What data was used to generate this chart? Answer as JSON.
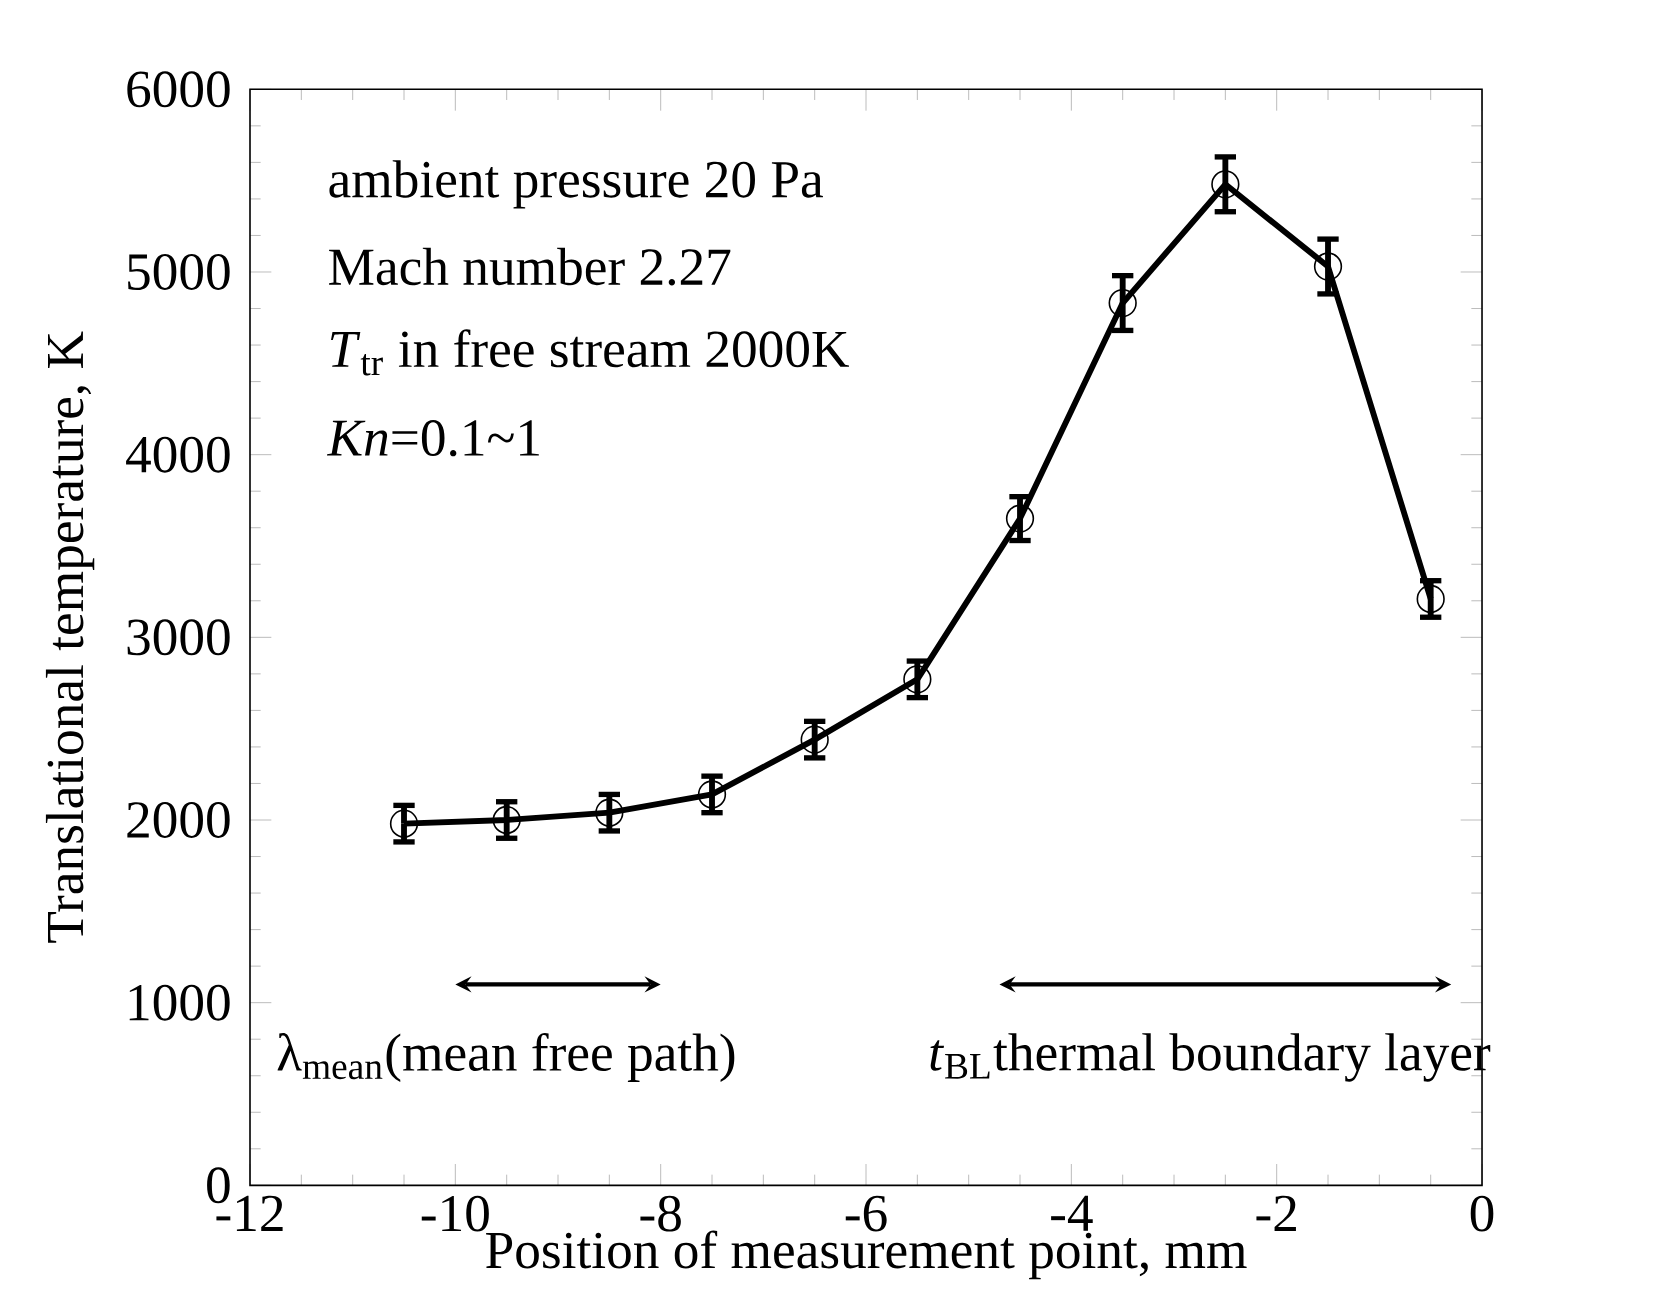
{
  "chart_data": {
    "type": "line",
    "xlabel": "Position of measurement point, mm",
    "ylabel": "Translational temperature, K",
    "x": [
      -10.5,
      -9.5,
      -8.5,
      -7.5,
      -6.5,
      -5.5,
      -4.5,
      -3.5,
      -2.5,
      -1.5,
      -0.5
    ],
    "series": [
      {
        "color": "#000000",
        "values": [
          1980,
          2000,
          2040,
          2140,
          2440,
          2770,
          3650,
          4830,
          5480,
          5030,
          3210
        ],
        "errors": [
          100,
          100,
          100,
          100,
          100,
          100,
          120,
          150,
          150,
          150,
          100
        ]
      }
    ],
    "xlim": [
      -12,
      0
    ],
    "xticks": [
      -12,
      -10,
      -8,
      -6,
      -4,
      -2,
      0
    ],
    "ylim": [
      0,
      6000
    ],
    "yticks": [
      0,
      1000,
      2000,
      3000,
      4000,
      5000,
      6000
    ],
    "marker": "circle",
    "line_style": "solid",
    "annotations": [
      "ambient pressure 20 Pa",
      "Mach number 2.27",
      "*T*$_{tr}$ in free stream 2000K",
      "*Kn*=0.1~1",
      "λ$_{mean}$(mean free path)",
      "*t*$_{BL}$thermal boundary layer"
    ]
  }
}
